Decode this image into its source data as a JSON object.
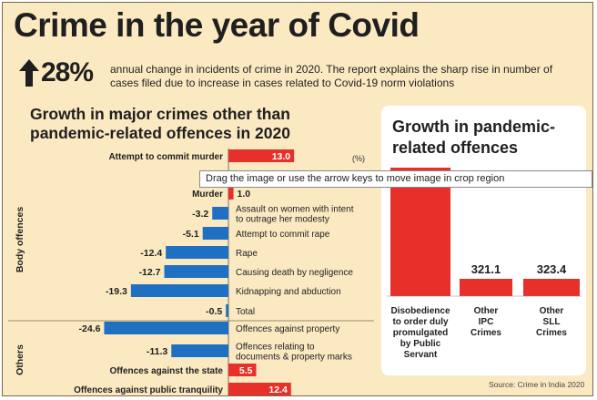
{
  "header": {
    "title": "Crime in the year of Covid",
    "stat": "28%",
    "subtitle": "annual change in incidents of crime in 2020. The report explains the sharp rise in number of cases filed due to increase in cases related to Covid-19 norm violations"
  },
  "colors": {
    "background": "#fbe9c2",
    "positive": "#e8302a",
    "negative": "#1f6fc2",
    "panel": "#ffffff"
  },
  "chart_data": [
    {
      "type": "bar",
      "title": "Growth in major crimes other than pandemic-related offences in 2020",
      "unit": "(%)",
      "groups": [
        {
          "name": "Body offences",
          "categories": [
            "Attempt to commit murder",
            "Murder",
            "Assault on women with intent to outrage her modesty",
            "Attempt to commit rape",
            "Rape",
            "Causing death by negligence",
            "Kidnapping and abduction",
            "Total"
          ]
        },
        {
          "name": "Others",
          "categories": [
            "Offences against property",
            "Offences relating to documents & property marks",
            "Offences against the state",
            "Offences against public tranquillity"
          ]
        }
      ],
      "bars": [
        {
          "label": "Attempt to commit murder",
          "value": 13.0,
          "value_text": "13.0"
        },
        {
          "label": "Murder",
          "value": 1.0,
          "value_text": "1.0"
        },
        {
          "label": "Assault on women with intent to outrage her modesty",
          "label_lines": [
            "Assault on women with intent",
            "to outrage her modesty"
          ],
          "value": -3.2,
          "value_text": "-3.2"
        },
        {
          "label": "Attempt to commit rape",
          "value": -5.1,
          "value_text": "-5.1"
        },
        {
          "label": "Rape",
          "value": -12.4,
          "value_text": "-12.4"
        },
        {
          "label": "Causing death by negligence",
          "value": -12.7,
          "value_text": "-12.7"
        },
        {
          "label": "Kidnapping and abduction",
          "value": -19.3,
          "value_text": "-19.3"
        },
        {
          "label": "Total",
          "value": -0.5,
          "value_text": "-0.5"
        },
        {
          "label": "Offences against property",
          "value": -24.6,
          "value_text": "-24.6"
        },
        {
          "label": "Offences relating to documents & property marks",
          "label_lines": [
            "Offences relating to",
            "documents & property marks"
          ],
          "value": -11.3,
          "value_text": "-11.3"
        },
        {
          "label": "Offences against the state",
          "value": 5.5,
          "value_text": "5.5"
        },
        {
          "label": "Offences against public tranquility",
          "value": 12.4,
          "value_text": "12.4"
        }
      ]
    },
    {
      "type": "bar",
      "title": "Growth in pandemic-related offences",
      "categories": [
        "Disobedience to order duly promulgated by Public Servant",
        "Other IPC Crimes",
        "Other SLL Crimes"
      ],
      "label_lines": [
        [
          "Disobedience",
          "to order duly",
          "promulgated",
          "by Public",
          "Servant"
        ],
        [
          "Other",
          "IPC",
          "Crimes"
        ],
        [
          "Other",
          "SLL",
          "Crimes"
        ]
      ],
      "values": [
        null,
        321.1,
        323.4
      ],
      "value_texts": [
        "",
        "321.1",
        "323.4"
      ]
    }
  ],
  "tooltip": "Drag the image or use the arrow keys to move image in crop region",
  "source": "Source: Crime in India 2020"
}
